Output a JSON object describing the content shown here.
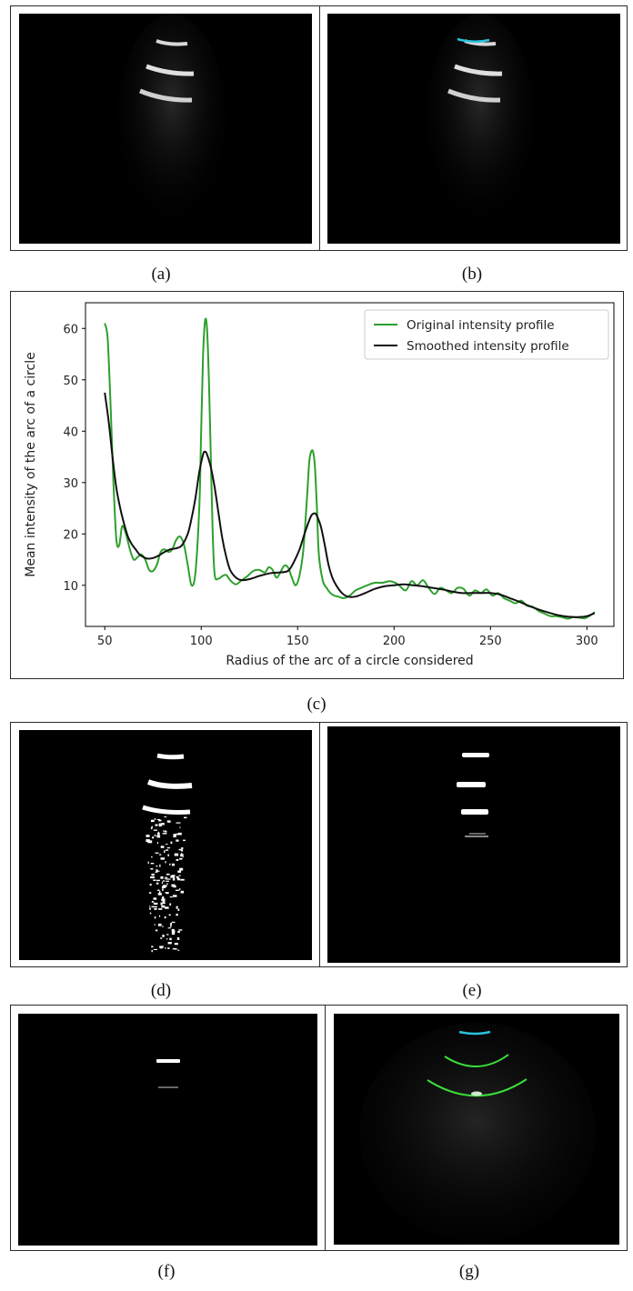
{
  "captions": {
    "a": "(a)",
    "b": "(b)",
    "c": "(c)",
    "d": "(d)",
    "e": "(e)",
    "f": "(f)",
    "g": "(g)"
  },
  "colors": {
    "original": "#2ca02c",
    "smoothed": "#111111",
    "detected_top_arc": "#29c3e0",
    "detected_arcs": "#3adf3a",
    "background": "#000000"
  },
  "chart_data": {
    "type": "line",
    "xlabel": "Radius of the arc of a circle considered",
    "ylabel": "Mean intensity of the arc of a circle",
    "xlim": [
      40,
      314
    ],
    "ylim": [
      2,
      65
    ],
    "xticks": [
      50,
      100,
      150,
      200,
      250,
      300
    ],
    "yticks": [
      10,
      20,
      30,
      40,
      50,
      60
    ],
    "grid": false,
    "legend_position": "top-right",
    "series": [
      {
        "name": "Original intensity profile",
        "color": "#2ca02c",
        "x": [
          50,
          51.5,
          53,
          54.5,
          56,
          57.5,
          59,
          61,
          63,
          65,
          67,
          69,
          71,
          73,
          75,
          77,
          79,
          81,
          83,
          85,
          87,
          89,
          91,
          93,
          95,
          97,
          99,
          100,
          101,
          102,
          103,
          104,
          105,
          106,
          107,
          109,
          111,
          113,
          115,
          118,
          121,
          124,
          127,
          130,
          133,
          135,
          137,
          139,
          141,
          143,
          145,
          147,
          149,
          151,
          153,
          155,
          156,
          157,
          158,
          159,
          160,
          161,
          163,
          165,
          167,
          169,
          171,
          174,
          177,
          180,
          183,
          186,
          190,
          194,
          198,
          202,
          206,
          209,
          212,
          215,
          218,
          221,
          224,
          227,
          230,
          233,
          236,
          239,
          242,
          245,
          248,
          251,
          254,
          257,
          260,
          263,
          266,
          269,
          272,
          275,
          278,
          281,
          284,
          287,
          290,
          293,
          296,
          299,
          302,
          304
        ],
        "y": [
          61,
          58,
          45,
          30,
          19,
          17.8,
          21.5,
          20,
          17,
          15,
          15.5,
          16,
          15,
          13,
          12.8,
          14,
          16.5,
          17,
          16.5,
          17,
          18.8,
          19.5,
          18,
          14,
          10,
          12.5,
          25,
          40,
          55,
          61.5,
          60,
          50,
          35,
          20,
          12,
          11.3,
          11.8,
          12,
          11,
          10.2,
          11,
          11.8,
          12.8,
          13,
          12.5,
          13.5,
          13,
          11.5,
          12.5,
          13.8,
          13.5,
          11.5,
          10,
          12,
          17,
          28,
          34,
          36,
          36,
          33,
          25,
          16,
          11,
          9.5,
          8.5,
          8,
          7.8,
          7.5,
          8,
          9,
          9.5,
          10,
          10.5,
          10.5,
          10.8,
          10.2,
          9,
          10.8,
          10,
          11,
          9.5,
          8.3,
          9.5,
          9,
          8.5,
          9.5,
          9.3,
          8,
          9,
          8.5,
          9.2,
          8,
          8.5,
          7.5,
          7,
          6.5,
          7,
          6,
          5.8,
          5,
          4.5,
          4,
          4,
          3.8,
          3.5,
          3.8,
          3.7,
          3.6,
          4.2,
          4.8
        ]
      },
      {
        "name": "Smoothed intensity profile",
        "color": "#111111",
        "x": [
          50,
          52,
          54,
          56,
          58,
          60,
          62,
          64,
          66,
          68,
          70,
          72,
          75,
          78,
          81,
          84,
          87,
          90,
          93,
          95,
          97,
          99,
          101,
          102,
          103,
          105,
          107,
          109,
          111,
          113,
          115,
          118,
          121,
          125,
          130,
          135,
          140,
          145,
          148,
          151,
          154,
          157,
          159,
          160,
          162,
          164,
          166,
          168,
          170,
          173,
          176,
          180,
          185,
          190,
          195,
          200,
          205,
          210,
          215,
          220,
          225,
          230,
          235,
          240,
          245,
          250,
          255,
          260,
          265,
          270,
          275,
          280,
          285,
          290,
          295,
          300,
          304
        ],
        "y": [
          47.5,
          42,
          35,
          29,
          25,
          22,
          19.5,
          18,
          17,
          16,
          15.5,
          15.2,
          15.3,
          15.8,
          16.5,
          17,
          17.2,
          17.8,
          20,
          23,
          27,
          32,
          35.5,
          36,
          35.5,
          33,
          29,
          24,
          19,
          15.5,
          13,
          11.5,
          11,
          11.2,
          11.8,
          12.3,
          12.5,
          12.8,
          14.5,
          17,
          20.5,
          23.5,
          24,
          23.5,
          21.5,
          18,
          14,
          11.5,
          10,
          8.5,
          7.8,
          7.8,
          8.5,
          9.3,
          9.8,
          10,
          10.2,
          10,
          9.8,
          9.5,
          9.2,
          8.8,
          8.5,
          8.5,
          8.5,
          8.5,
          8.2,
          7.5,
          6.8,
          6,
          5.3,
          4.7,
          4.2,
          3.9,
          3.8,
          4,
          4.6
        ]
      }
    ]
  }
}
